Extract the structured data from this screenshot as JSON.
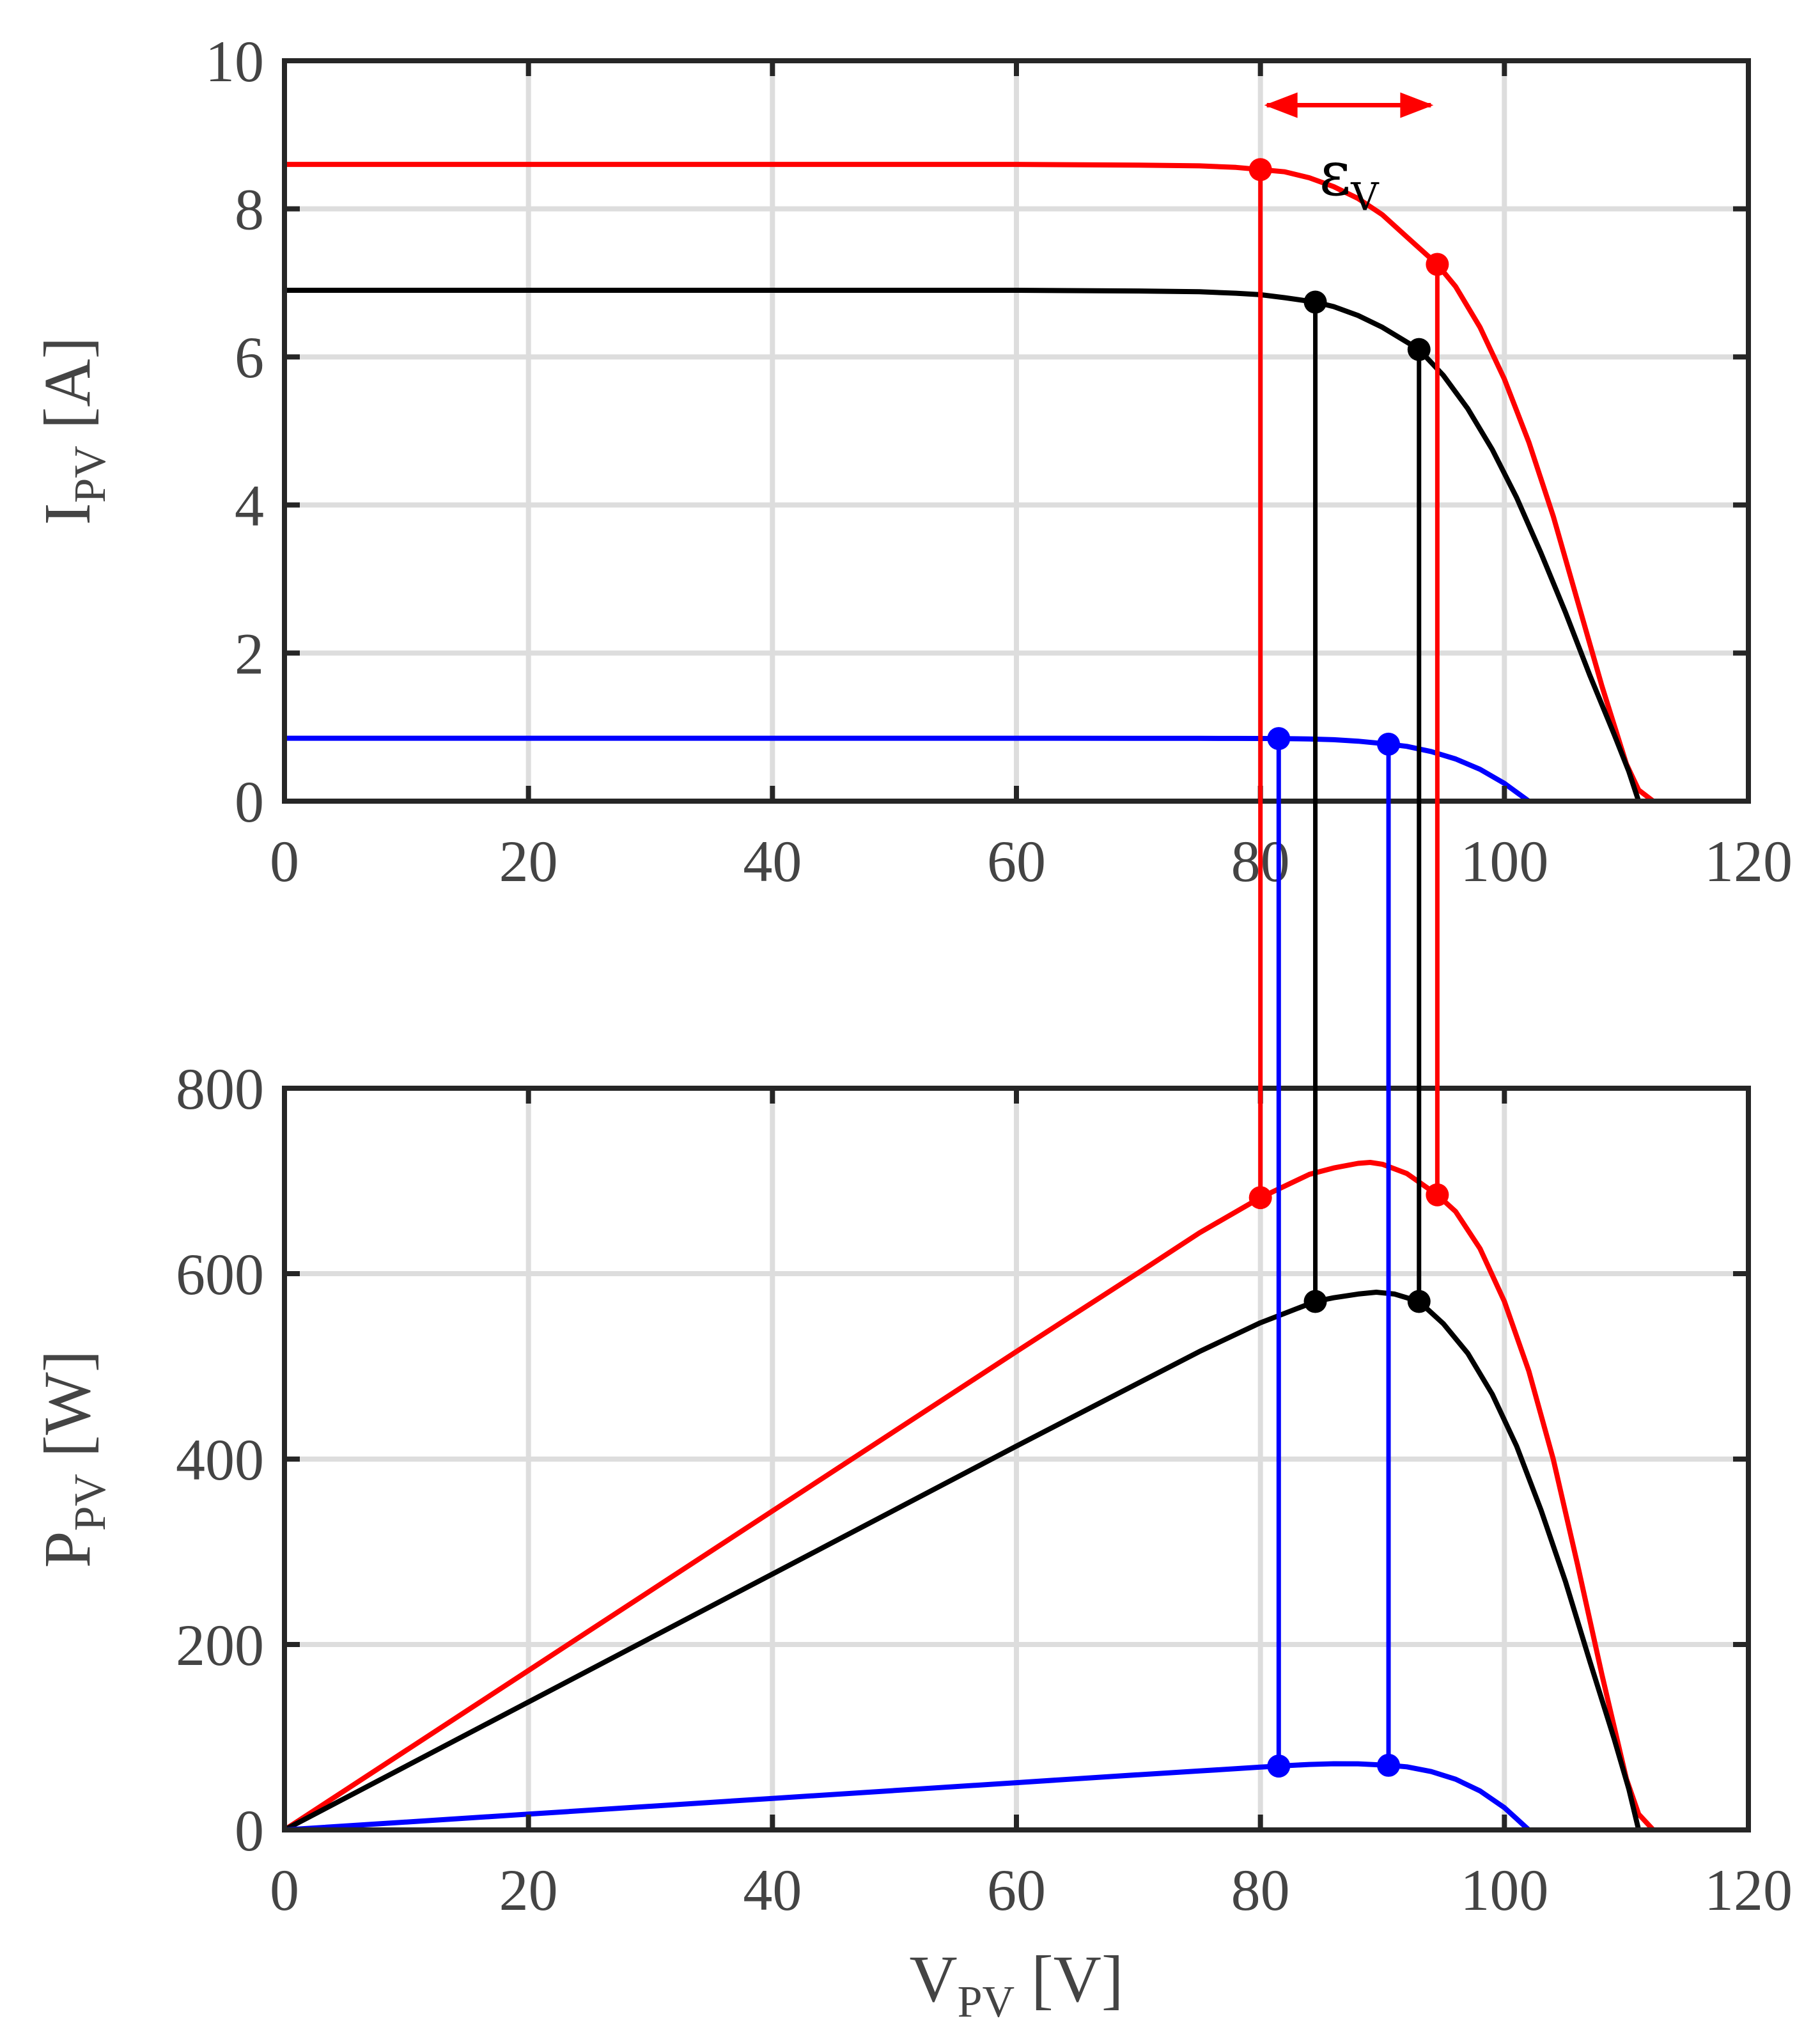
{
  "chart_data": [
    {
      "id": "iv",
      "type": "line",
      "title": "",
      "xlabel": {
        "main": "",
        "sub": ""
      },
      "ylabel": {
        "main": "I",
        "sub": "PV",
        "unit": " [A]"
      },
      "xlim": [
        0,
        120
      ],
      "ylim": [
        0,
        10
      ],
      "xticks": [
        0,
        20,
        40,
        60,
        80,
        100,
        120
      ],
      "yticks": [
        0,
        2,
        4,
        6,
        8,
        10
      ],
      "grid": true,
      "series": [
        {
          "name": "red",
          "color": "#ff0000",
          "x": [
            0,
            60,
            70,
            75,
            78,
            80,
            82,
            84,
            86,
            88,
            90,
            92,
            94.5,
            96,
            98,
            100,
            102,
            104,
            106,
            108,
            110,
            111,
            112.2,
            120
          ],
          "y": [
            8.6,
            8.6,
            8.59,
            8.58,
            8.56,
            8.53,
            8.5,
            8.42,
            8.3,
            8.14,
            7.92,
            7.62,
            7.25,
            6.95,
            6.4,
            5.7,
            4.85,
            3.85,
            2.7,
            1.55,
            0.5,
            0.15,
            0,
            0
          ]
        },
        {
          "name": "black",
          "color": "#000000",
          "x": [
            0,
            60,
            70,
            75,
            78,
            80,
            82,
            84.5,
            86,
            88,
            90,
            93,
            95,
            97,
            99,
            101,
            103,
            105,
            107,
            109,
            110.2,
            111,
            120
          ],
          "y": [
            6.9,
            6.9,
            6.89,
            6.88,
            6.86,
            6.84,
            6.8,
            6.74,
            6.68,
            6.56,
            6.4,
            6.1,
            5.75,
            5.3,
            4.75,
            4.1,
            3.35,
            2.55,
            1.7,
            0.9,
            0.4,
            0,
            0
          ]
        },
        {
          "name": "blue",
          "color": "#0000ff",
          "x": [
            0,
            60,
            70,
            75,
            78,
            80,
            81.5,
            84,
            86,
            88,
            90.5,
            92,
            94,
            96,
            98,
            100,
            101,
            102,
            120
          ],
          "y": [
            0.85,
            0.85,
            0.849,
            0.848,
            0.847,
            0.846,
            0.845,
            0.84,
            0.83,
            0.81,
            0.77,
            0.74,
            0.67,
            0.57,
            0.43,
            0.24,
            0.12,
            0,
            0
          ]
        }
      ],
      "markers": [
        {
          "color": "#ff0000",
          "x": 80,
          "y": 8.53
        },
        {
          "color": "#ff0000",
          "x": 94.5,
          "y": 7.25
        },
        {
          "color": "#000000",
          "x": 84.5,
          "y": 6.74
        },
        {
          "color": "#000000",
          "x": 93,
          "y": 6.1
        },
        {
          "color": "#0000ff",
          "x": 81.5,
          "y": 0.845
        },
        {
          "color": "#0000ff",
          "x": 90.5,
          "y": 0.77
        }
      ]
    },
    {
      "id": "pv",
      "type": "line",
      "title": "",
      "xlabel": {
        "main": "V",
        "sub": "PV",
        "unit": " [V]"
      },
      "ylabel": {
        "main": "P",
        "sub": "PV",
        "unit": " [W]"
      },
      "xlim": [
        0,
        120
      ],
      "ylim": [
        0,
        800
      ],
      "xticks": [
        0,
        20,
        40,
        60,
        80,
        100,
        120
      ],
      "yticks": [
        0,
        200,
        400,
        600,
        800
      ],
      "grid": true,
      "series": [
        {
          "name": "red",
          "color": "#ff0000",
          "x": [
            0,
            20,
            40,
            60,
            70,
            75,
            80,
            84,
            86,
            88,
            89,
            90,
            92,
            94.5,
            96,
            98,
            100,
            102,
            104,
            106,
            108,
            110,
            111,
            112.2,
            120
          ],
          "y": [
            0,
            172,
            344,
            516,
            601,
            644,
            682,
            707,
            714,
            719,
            720,
            718,
            708,
            685,
            667,
            627,
            570,
            495,
            400,
            286,
            167,
            55,
            17,
            0,
            0
          ]
        },
        {
          "name": "black",
          "color": "#000000",
          "x": [
            0,
            20,
            40,
            60,
            70,
            75,
            80,
            84.5,
            86,
            88,
            89.5,
            91,
            93,
            95,
            97,
            99,
            101,
            103,
            105,
            107,
            109,
            110.2,
            111,
            120
          ],
          "y": [
            0,
            138,
            276,
            414,
            482,
            516,
            547,
            570,
            574,
            578,
            580,
            578,
            570,
            546,
            514,
            470,
            414,
            345,
            268,
            182,
            98,
            44,
            0,
            0
          ]
        },
        {
          "name": "blue",
          "color": "#0000ff",
          "x": [
            0,
            20,
            40,
            60,
            70,
            75,
            80,
            81.5,
            84,
            86,
            88,
            90.5,
            92,
            94,
            96,
            98,
            100,
            101,
            102,
            120
          ],
          "y": [
            0,
            17,
            34,
            51,
            59.5,
            63.6,
            67.7,
            68.9,
            70.6,
            71.4,
            71.3,
            69.7,
            68.1,
            63,
            54.7,
            42.1,
            24,
            12.1,
            0,
            0
          ]
        }
      ],
      "markers": [
        {
          "color": "#ff0000",
          "x": 80,
          "y": 682
        },
        {
          "color": "#ff0000",
          "x": 94.5,
          "y": 685
        },
        {
          "color": "#000000",
          "x": 84.5,
          "y": 570
        },
        {
          "color": "#000000",
          "x": 93,
          "y": 570
        },
        {
          "color": "#0000ff",
          "x": 81.5,
          "y": 68.9
        },
        {
          "color": "#0000ff",
          "x": 90.5,
          "y": 69.7
        }
      ]
    }
  ],
  "annotation": {
    "symbol": "ε",
    "subscript": "V",
    "color": "#000000",
    "arrow_color": "#ff0000",
    "x_from": 80,
    "x_to": 94.5,
    "y": 9.4
  },
  "connectors": [
    {
      "color": "#ff0000",
      "x": 80,
      "from_i": 8.53,
      "to_p": 682
    },
    {
      "color": "#ff0000",
      "x": 94.5,
      "from_i": 7.25,
      "to_p": 685
    },
    {
      "color": "#000000",
      "x": 84.5,
      "from_i": 6.74,
      "to_p": 570
    },
    {
      "color": "#000000",
      "x": 93,
      "from_i": 6.1,
      "to_p": 570
    },
    {
      "color": "#0000ff",
      "x": 81.5,
      "from_i": 0.845,
      "to_p": 68.9
    },
    {
      "color": "#0000ff",
      "x": 90.5,
      "from_i": 0.77,
      "to_p": 69.7
    }
  ]
}
